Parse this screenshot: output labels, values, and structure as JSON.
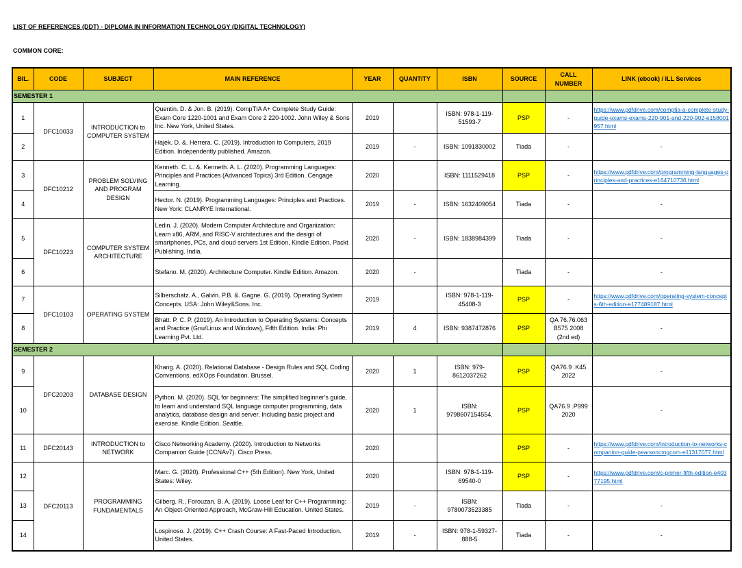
{
  "title": "LIST OF REFERENCES (DDT) - DIPLOMA IN INFORMATION TECHNOLOGY (DIGITAL TECHNOLOGY)",
  "subtitle": "COMMON CORE:",
  "colors": {
    "header": "#ffc000",
    "semester": "#a9d08e",
    "psp": "#ffff00",
    "link": "#0563c1"
  },
  "columns": [
    "BIL.",
    "CODE",
    "SUBJECT",
    "MAIN REFERENCE",
    "YEAR",
    "QUANTITY",
    "ISBN",
    "SOURCE",
    "CALL NUMBER",
    "LINK (ebook) / ILL Services"
  ],
  "semesters": [
    {
      "label": "SEMESTER 1",
      "groups": [
        {
          "code": "DFC10033",
          "subject": "INTRODUCTION to COMPUTER SYSTEM",
          "rows": [
            {
              "bil": "1",
              "ref": "Quentin. D. & Jon. B. (2019). CompTIA A+ Complete Study Guide: Exam Core 1220-1001 and Exam Core 2 220-1002. John Wiley & Sons Inc. New York, United States.",
              "year": "2019",
              "qty": "",
              "isbn": "ISBN: 978-1-119-51593-7",
              "source": "PSP",
              "call": "-",
              "link": "https://www.pdfdrive.com/comptia-a-complete-study-guide-exams-exams-220-901-and-220-902-e158001957.html"
            },
            {
              "bil": "2",
              "ref": "Hajek. D. &. Herrera. C. (2019). Introduction to Computers, 2019 Edition. Independently published. Amazon.",
              "year": "2019",
              "qty": "-",
              "isbn": "ISBN: 1091830002",
              "source": "Tiada",
              "call": "-",
              "link": "-"
            }
          ]
        },
        {
          "code": "DFC10212",
          "subject": "PROBLEM SOLVING AND PROGRAM DESIGN",
          "rows": [
            {
              "bil": "3",
              "ref": "Kenneth. C. L. &. Kenneth. A. L. (2020). Programming Languages: Principles and Practices (Advanced Topics) 3rd Edition. Cengage Learning.",
              "year": "2020",
              "qty": "",
              "isbn": "ISBN: 1111529418",
              "source": "PSP",
              "call": "-",
              "link": "https://www.pdfdrive.com/programming-languages-principles-and-practices-e164710736.html"
            },
            {
              "bil": "4",
              "ref": "Hector. N. (2019). Programming Languages: Principles and Practices. New York: CLANRYE International.",
              "year": "2019",
              "qty": "-",
              "isbn": "ISBN: 1632409054",
              "source": "Tiada",
              "call": "-",
              "link": "-"
            }
          ]
        },
        {
          "code": "DFC10223",
          "subject": "COMPUTER SYSTEM ARCHITECTURE",
          "rows": [
            {
              "bil": "5",
              "ref": "Ledin. J. (2020). Modern Computer Architecture and Organization: Learn x86, ARM, and RISC-V architectures and the design of smartphones, PCs, and cloud servers 1st Edition, Kindle Edition. Packt Publishing. India.",
              "year": "2020",
              "qty": "-",
              "isbn": "ISBN: 1838984399",
              "source": "Tiada",
              "call": "-",
              "link": "-"
            },
            {
              "bil": "6",
              "ref": "Stefano. M. (2020). Architecture Computer. Kindle Edition. Amazon.",
              "year": "2020",
              "qty": "-",
              "isbn": "",
              "source": "Tiada",
              "call": "-",
              "link": "-"
            }
          ]
        },
        {
          "code": "DFC10103",
          "subject": "OPERATING SYSTEM",
          "rows": [
            {
              "bil": "7",
              "ref": "Silberschatz. A., Galvin. P.B. &. Gagne. G. (2019). Operating System Concepts. USA: John Wiley&Sons. Inc.",
              "year": "2019",
              "qty": "",
              "isbn": "ISBN: 978-1-119-45408-3",
              "source": "PSP",
              "call": "-",
              "link": "https://www.pdfdrive.com/operating-system-concepts-6th-edition-e177489187.html"
            },
            {
              "bil": "8",
              "ref": "Bhatt. P. C. P. (2019). An Introduction to Operating Systems: Concepts and Practice (Gnu/Linux and Windows), Fifth Edition. India: Phi Learning Pvt. Ltd.",
              "year": "2019",
              "qty": "4",
              "isbn": "ISBN: 9387472876",
              "source": "PSP",
              "call": "QA 76.76.063 B575 2008 (2nd ed)",
              "link": "-"
            }
          ]
        }
      ]
    },
    {
      "label": "SEMESTER 2",
      "groups": [
        {
          "code": "DFC20203",
          "subject": "DATABASE DESIGN",
          "rows": [
            {
              "bil": "9",
              "ref": "Khang. A. (2020). Relational Database - Design Rules and SQL Coding Conventions. edXOps Foundation. Brussel.",
              "year": "2020",
              "qty": "1",
              "isbn": "ISBN: 979-8612037262",
              "source": "PSP",
              "call": "QA76.9 .K45 2022",
              "link": "-"
            },
            {
              "bil": "10",
              "ref": "Python. M. (2020). SQL for beginners: The simplified beginner's guide, to learn and understand SQL language computer programming, data analytics, database design and server. Including basic project and exercise. Kindle Edition. Seattle.",
              "year": "2020",
              "qty": "1",
              "isbn": "ISBN: 9798607154554.",
              "source": "PSP",
              "call": "QA76.9 .P999 2020",
              "link": "-"
            }
          ]
        },
        {
          "code": "DFC20143",
          "subject": "INTRODUCTION to NETWORK",
          "rows": [
            {
              "bil": "11",
              "ref": "Cisco Networking Academy. (2020). Introduction to Networks Companion Guide (CCNAv7). Cisco Press.",
              "year": "2020",
              "qty": "",
              "isbn": "",
              "source": "PSP",
              "call": "-",
              "link": "https://www.pdfdrive.com/introduction-to-networks-companion-guide-pearsoncmgcom-e11317077.html"
            }
          ]
        },
        {
          "code": "DFC20113",
          "subject": "PROGRAMMING FUNDAMENTALS",
          "rows": [
            {
              "bil": "12",
              "ref": "Marc. G. (2020). Professional C++ (5th Edition). New York, United States: Wiley.",
              "year": "2020",
              "qty": "",
              "isbn": "ISBN: 978-1-119-69540-0",
              "source": "PSP",
              "call": "-",
              "link": "https://www.pdfdrive.com/c-primer-fifth-edition-e40377195.html"
            },
            {
              "bil": "13",
              "ref": "Gilberg. R., Forouzan. B. A. (2019). Loose Leaf for C++ Programming: An Object-Oriented Approach, McGraw-Hill Education. United States.",
              "year": "2019",
              "qty": "-",
              "isbn": "ISBN: 9780073523385",
              "source": "Tiada",
              "call": "-",
              "link": "-"
            },
            {
              "bil": "14",
              "ref": "Lospinoso. J. (2019). C++ Crash Course: A Fast-Paced Introduction. United States.",
              "year": "2019",
              "qty": "-",
              "isbn": "ISBN: 978-1-59327-888-5",
              "source": "Tiada",
              "call": "-",
              "link": "-"
            }
          ]
        }
      ]
    }
  ]
}
